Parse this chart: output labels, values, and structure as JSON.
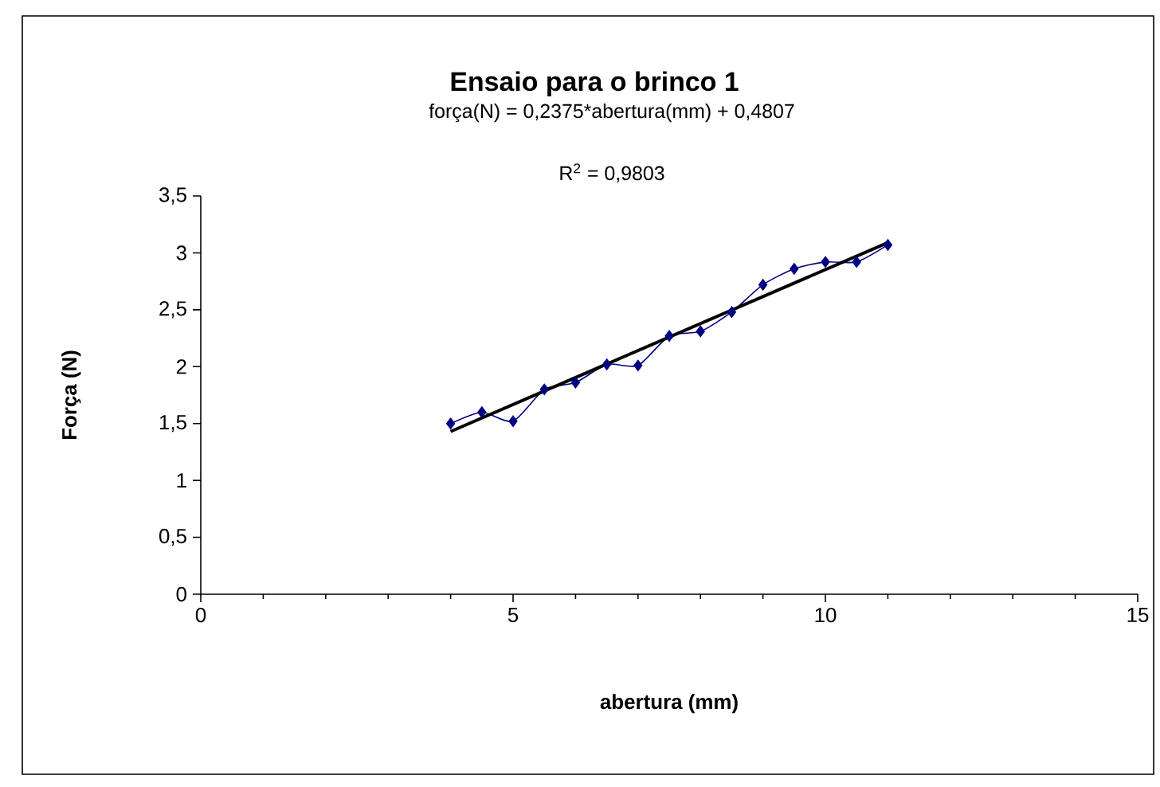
{
  "chart_data": {
    "type": "line",
    "title": "Ensaio para o brinco 1",
    "xlabel": "abertura (mm)",
    "ylabel": "Força (N)",
    "annotations": [
      "força(N) = 0,2375*abertura(mm) + 0,4807",
      "R$^{2}$ = 0,9803"
    ],
    "xlim": [
      0,
      15
    ],
    "xticks": [
      0,
      5,
      10,
      15
    ],
    "ylim": [
      0,
      3.5
    ],
    "yticks": [
      0,
      {
        "value": 0.5,
        "label": "0,5"
      },
      1,
      {
        "value": 1.5,
        "label": "1,5"
      },
      2,
      {
        "value": 2.5,
        "label": "2,5"
      },
      3,
      {
        "value": 3.5,
        "label": "3,5"
      }
    ],
    "series": [
      {
        "color": "#000080",
        "marker": "diamond",
        "x": [
          4,
          4.5,
          5,
          5.5,
          6,
          6.5,
          7,
          7.5,
          8,
          8.5,
          9,
          9.5,
          10,
          10.5,
          11
        ],
        "values": [
          1.5,
          1.6,
          1.52,
          1.8,
          1.86,
          2.02,
          2.01,
          2.27,
          2.31,
          2.48,
          2.72,
          2.86,
          2.92,
          2.92,
          3.07
        ]
      },
      {
        "color": "#000000",
        "marker": "none",
        "x": [
          4,
          11
        ],
        "values": [
          1.43,
          3.09
        ]
      }
    ]
  }
}
